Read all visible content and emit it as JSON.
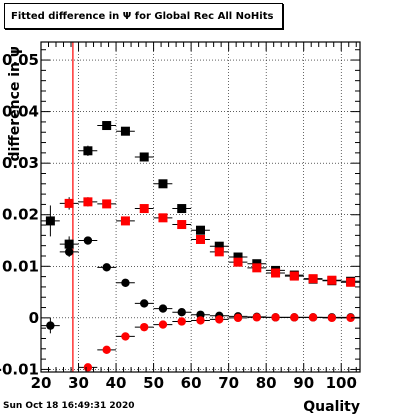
{
  "chart_data": {
    "type": "scatter",
    "title": "Fitted difference in  Ψ  for Global Rec All NoHits",
    "xlabel": "Quality",
    "ylabel": "difference in ψ",
    "xlim": [
      20,
      105
    ],
    "ylim": [
      -0.0105,
      0.0535
    ],
    "x_ticks": [
      20,
      30,
      40,
      50,
      60,
      70,
      80,
      90,
      100
    ],
    "y_ticks": [
      {
        "value": -0.01,
        "label": "-0.01"
      },
      {
        "value": 0,
        "label": "0"
      },
      {
        "value": 0.01,
        "label": "0.01"
      },
      {
        "value": 0.02,
        "label": "0.02"
      },
      {
        "value": 0.03,
        "label": "0.03"
      },
      {
        "value": 0.04,
        "label": "0.04"
      },
      {
        "value": 0.05,
        "label": "0.05"
      }
    ],
    "grid": true,
    "vertical_line": {
      "x": 28.5,
      "color": "#ff0000"
    },
    "series": [
      {
        "marker": "square",
        "color": "#000000",
        "x": [
          22.5,
          27.5,
          32.5,
          37.5,
          42.5,
          47.5,
          52.5,
          57.5,
          62.5,
          67.5,
          72.5,
          77.5,
          82.5,
          87.5,
          92.5,
          97.5,
          102.5
        ],
        "y": [
          0.0188,
          0.0143,
          0.0324,
          0.0373,
          0.0362,
          0.0312,
          0.026,
          0.0212,
          0.017,
          0.0139,
          0.0118,
          0.0105,
          0.0092,
          0.0083,
          0.0075,
          0.0072,
          0.0071
        ],
        "yerr": [
          0.003,
          0.0015,
          0.001,
          0.0008,
          0.0007,
          0.0006,
          0.0005,
          0.0004,
          0.0004,
          0.0003,
          0.0003,
          0.0003,
          0.0003,
          0.0002,
          0.0002,
          0.0002,
          0.0002
        ]
      },
      {
        "marker": "circle",
        "color": "#000000",
        "x": [
          22.5,
          27.5,
          32.5,
          37.5,
          42.5,
          47.5,
          52.5,
          57.5,
          62.5,
          67.5,
          72.5,
          77.5,
          82.5,
          87.5,
          92.5,
          97.5,
          102.5
        ],
        "y": [
          -0.0015,
          0.0128,
          0.015,
          0.0098,
          0.0068,
          0.0028,
          0.0018,
          0.0011,
          0.0006,
          0.0004,
          0.0003,
          0.0002,
          0.0001,
          0.0001,
          0.0001,
          0.0001,
          0.0001
        ],
        "yerr": [
          0.0015,
          0.001,
          0.0007,
          0.0004,
          0.0003,
          0.0003,
          0.0002,
          0.0002,
          0.0002,
          0.0001,
          0.0001,
          0.0001,
          0.0001,
          0.0001,
          0.0001,
          0.0001,
          0.0001
        ]
      },
      {
        "marker": "square",
        "color": "#ff0000",
        "x": [
          27.5,
          32.5,
          37.5,
          42.5,
          47.5,
          52.5,
          57.5,
          62.5,
          67.5,
          72.5,
          77.5,
          82.5,
          87.5,
          92.5,
          97.5,
          102.5
        ],
        "y": [
          0.0222,
          0.0225,
          0.0221,
          0.0188,
          0.0212,
          0.0194,
          0.0181,
          0.0152,
          0.0128,
          0.0108,
          0.0097,
          0.0087,
          0.0081,
          0.0076,
          0.0073,
          0.0069
        ],
        "yerr": [
          0.0012,
          0.0009,
          0.0007,
          0.0006,
          0.0005,
          0.0005,
          0.0004,
          0.0004,
          0.0003,
          0.0003,
          0.0003,
          0.0002,
          0.0002,
          0.0002,
          0.0002,
          0.0002
        ]
      },
      {
        "marker": "circle",
        "color": "#ff0000",
        "x": [
          32.5,
          37.5,
          42.5,
          47.5,
          52.5,
          57.5,
          62.5,
          67.5,
          72.5,
          77.5,
          82.5,
          87.5,
          92.5,
          97.5,
          102.5
        ],
        "y": [
          -0.0096,
          -0.0062,
          -0.0036,
          -0.0018,
          -0.0013,
          -0.0007,
          -0.0005,
          -0.0003,
          0.0,
          0.0001,
          0.0001,
          0.0001,
          0.0001,
          0.0,
          0.0
        ],
        "yerr": [
          0.0006,
          0.0004,
          0.0003,
          0.0003,
          0.0002,
          0.0002,
          0.0002,
          0.0001,
          0.0001,
          0.0001,
          0.0001,
          0.0001,
          0.0001,
          0.0001,
          0.0001
        ]
      }
    ]
  },
  "footer": {
    "timestamp": "Sun Oct 18 16:49:31 2020"
  }
}
